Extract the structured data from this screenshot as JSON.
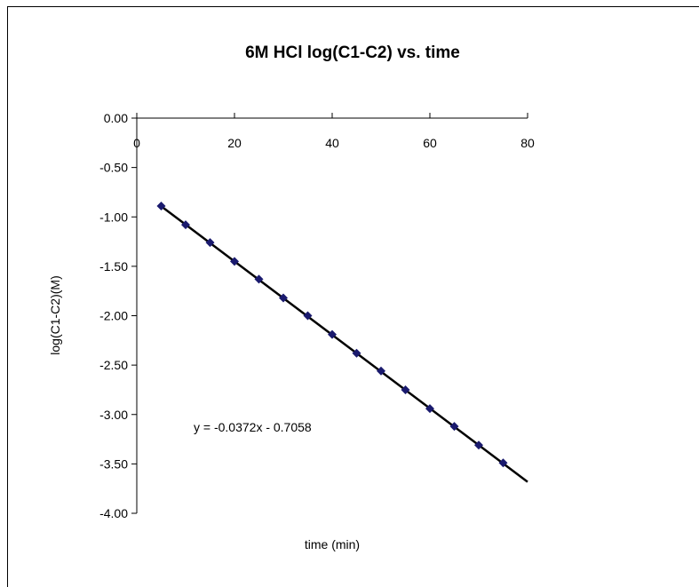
{
  "chart_data": {
    "type": "scatter",
    "title": "6M HCl log(C1-C2) vs. time",
    "xlabel": "time (min)",
    "ylabel": "log(C1-C2)(M)",
    "xlim": [
      0,
      80
    ],
    "ylim": [
      -4.0,
      0.0
    ],
    "x_ticks": [
      0,
      20,
      40,
      60,
      80
    ],
    "x_tick_labels": [
      "0",
      "20",
      "40",
      "60",
      "80"
    ],
    "y_ticks": [
      0,
      -0.5,
      -1.0,
      -1.5,
      -2.0,
      -2.5,
      -3.0,
      -3.5,
      -4.0
    ],
    "y_tick_labels": [
      "0.00",
      "-0.50",
      "-1.00",
      "-1.50",
      "-2.00",
      "-2.50",
      "-3.00",
      "-3.50",
      "-4.00"
    ],
    "x_axis_position": "top (at y = 0)",
    "legend": "none",
    "grid": false,
    "series": [
      {
        "x": [
          5,
          10,
          15,
          20,
          25,
          30,
          35,
          40,
          45,
          50,
          55,
          60,
          65,
          70,
          75
        ],
        "y": [
          -0.89,
          -1.08,
          -1.26,
          -1.45,
          -1.63,
          -1.82,
          -2.0,
          -2.19,
          -2.38,
          -2.56,
          -2.75,
          -2.94,
          -3.12,
          -3.31,
          -3.49
        ],
        "marker_color": "#1a1a6e"
      }
    ],
    "trendline": {
      "slope": -0.0372,
      "intercept": -0.7058,
      "x_range": [
        5,
        80
      ],
      "color": "#000000",
      "equation_label": "y = -0.0372x - 0.7058"
    }
  }
}
